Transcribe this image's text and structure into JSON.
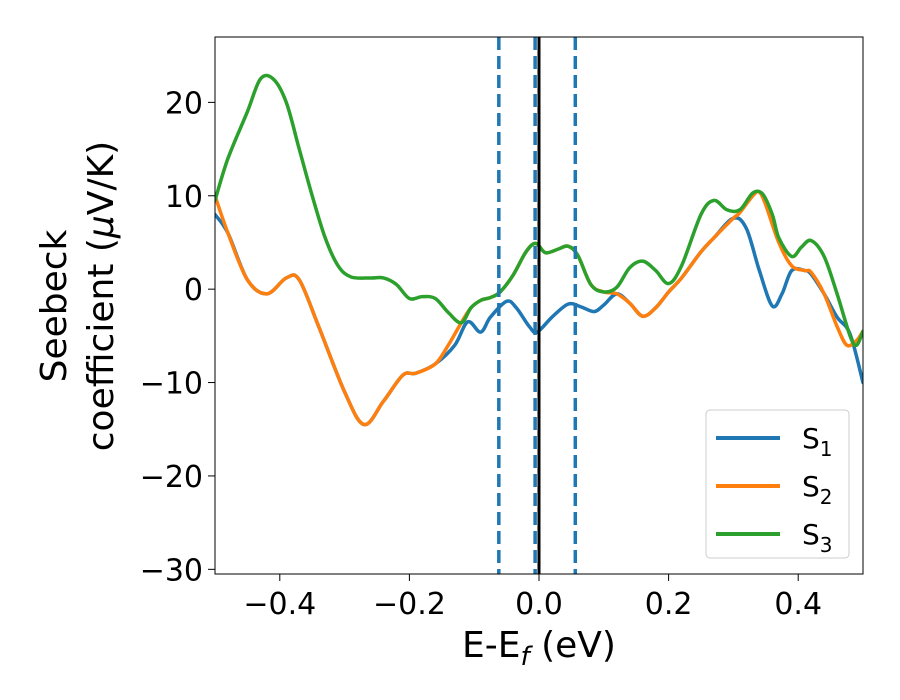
{
  "chart_data": {
    "type": "line",
    "title": "",
    "xlabel": {
      "main": "E-E",
      "sub": "f",
      "tail": " (eV)"
    },
    "ylabel": {
      "line1": "Seebeck",
      "line2_a": "coefficient  (",
      "line2_mu": "μ",
      "line2_b": "V/K)"
    },
    "xlim": [
      -0.5,
      0.5
    ],
    "ylim": [
      -30.5,
      27
    ],
    "xticks": [
      -0.4,
      -0.2,
      0.0,
      0.2,
      0.4
    ],
    "xtick_labels": [
      "−0.4",
      "−0.2",
      "0.0",
      "0.2",
      "0.4"
    ],
    "yticks": [
      -30,
      -20,
      -10,
      0,
      10,
      20
    ],
    "ytick_labels": [
      "−30",
      "−20",
      "−10",
      "0",
      "10",
      "20"
    ],
    "legend_position": "bottom-right",
    "vlines": [
      {
        "x": -0.062,
        "style": "dashed",
        "color": "#1f77b4"
      },
      {
        "x": -0.006,
        "style": "dashed",
        "color": "#1f77b4"
      },
      {
        "x": 0.0,
        "style": "solid",
        "color": "#000000"
      },
      {
        "x": 0.056,
        "style": "dashed",
        "color": "#1f77b4"
      }
    ],
    "series": [
      {
        "name": "S",
        "sub": "1",
        "color": "#1f77b4",
        "points": [
          [
            -0.5,
            8
          ],
          [
            -0.48,
            6
          ],
          [
            -0.45,
            1
          ],
          [
            -0.42,
            -0.5
          ],
          [
            -0.39,
            1.2
          ],
          [
            -0.37,
            1
          ],
          [
            -0.34,
            -4
          ],
          [
            -0.3,
            -11
          ],
          [
            -0.27,
            -14.5
          ],
          [
            -0.24,
            -12
          ],
          [
            -0.21,
            -9.2
          ],
          [
            -0.19,
            -9
          ],
          [
            -0.16,
            -8
          ],
          [
            -0.13,
            -6
          ],
          [
            -0.11,
            -3.5
          ],
          [
            -0.09,
            -4.6
          ],
          [
            -0.075,
            -3
          ],
          [
            -0.05,
            -1.3
          ],
          [
            -0.035,
            -2
          ],
          [
            -0.015,
            -4
          ],
          [
            -0.003,
            -4.6
          ],
          [
            0.02,
            -3
          ],
          [
            0.045,
            -1.6
          ],
          [
            0.065,
            -1.9
          ],
          [
            0.085,
            -2.4
          ],
          [
            0.1,
            -1.7
          ],
          [
            0.12,
            -0.5
          ],
          [
            0.14,
            -1.5
          ],
          [
            0.16,
            -2.9
          ],
          [
            0.18,
            -2
          ],
          [
            0.2,
            -0.3
          ],
          [
            0.22,
            1.2
          ],
          [
            0.25,
            4
          ],
          [
            0.27,
            5.5
          ],
          [
            0.3,
            7.6
          ],
          [
            0.32,
            6.5
          ],
          [
            0.34,
            2
          ],
          [
            0.36,
            -1.8
          ],
          [
            0.375,
            -0.5
          ],
          [
            0.39,
            2
          ],
          [
            0.41,
            2
          ],
          [
            0.42,
            1.6
          ],
          [
            0.44,
            -0.5
          ],
          [
            0.46,
            -3
          ],
          [
            0.48,
            -4.8
          ],
          [
            0.5,
            -10
          ]
        ]
      },
      {
        "name": "S",
        "sub": "2",
        "color": "#ff7f0e",
        "points": [
          [
            -0.5,
            10
          ],
          [
            -0.48,
            6
          ],
          [
            -0.45,
            1
          ],
          [
            -0.42,
            -0.5
          ],
          [
            -0.39,
            1.2
          ],
          [
            -0.37,
            1
          ],
          [
            -0.34,
            -4
          ],
          [
            -0.3,
            -11
          ],
          [
            -0.27,
            -14.5
          ],
          [
            -0.24,
            -12
          ],
          [
            -0.21,
            -9.2
          ],
          [
            -0.19,
            -9
          ],
          [
            -0.16,
            -8
          ],
          [
            -0.14,
            -6
          ],
          [
            -0.12,
            -3.6
          ],
          [
            -0.105,
            -2
          ],
          [
            -0.09,
            -1.2
          ],
          [
            -0.075,
            -0.9
          ],
          [
            -0.06,
            -0.3
          ],
          [
            -0.04,
            1.5
          ],
          [
            -0.02,
            4
          ],
          [
            -0.005,
            4.9
          ],
          [
            0.01,
            3.9
          ],
          [
            0.03,
            4.3
          ],
          [
            0.045,
            4.6
          ],
          [
            0.06,
            3.6
          ],
          [
            0.08,
            0.5
          ],
          [
            0.1,
            -0.3
          ],
          [
            0.12,
            -0.5
          ],
          [
            0.14,
            -1.5
          ],
          [
            0.16,
            -2.9
          ],
          [
            0.18,
            -2
          ],
          [
            0.2,
            -0.3
          ],
          [
            0.22,
            1.2
          ],
          [
            0.25,
            4
          ],
          [
            0.27,
            5.5
          ],
          [
            0.3,
            7.6
          ],
          [
            0.31,
            8.2
          ],
          [
            0.33,
            10
          ],
          [
            0.34,
            10.4
          ],
          [
            0.35,
            9
          ],
          [
            0.37,
            5
          ],
          [
            0.39,
            2.5
          ],
          [
            0.41,
            2
          ],
          [
            0.42,
            1.8
          ],
          [
            0.44,
            -0.5
          ],
          [
            0.46,
            -4
          ],
          [
            0.475,
            -6
          ],
          [
            0.49,
            -5.5
          ],
          [
            0.5,
            -4.5
          ]
        ]
      },
      {
        "name": "S",
        "sub": "3",
        "color": "#2ca02c",
        "points": [
          [
            -0.5,
            9.5
          ],
          [
            -0.48,
            14
          ],
          [
            -0.45,
            19
          ],
          [
            -0.43,
            22.5
          ],
          [
            -0.41,
            22.5
          ],
          [
            -0.39,
            20
          ],
          [
            -0.37,
            15
          ],
          [
            -0.35,
            10
          ],
          [
            -0.33,
            5.5
          ],
          [
            -0.31,
            2.5
          ],
          [
            -0.29,
            1.3
          ],
          [
            -0.26,
            1.2
          ],
          [
            -0.24,
            1.2
          ],
          [
            -0.22,
            0.5
          ],
          [
            -0.2,
            -1
          ],
          [
            -0.18,
            -0.8
          ],
          [
            -0.16,
            -1
          ],
          [
            -0.14,
            -2.5
          ],
          [
            -0.12,
            -3.6
          ],
          [
            -0.105,
            -2
          ],
          [
            -0.09,
            -1.2
          ],
          [
            -0.075,
            -0.9
          ],
          [
            -0.06,
            -0.3
          ],
          [
            -0.04,
            1.5
          ],
          [
            -0.02,
            4
          ],
          [
            -0.005,
            4.9
          ],
          [
            0.01,
            3.9
          ],
          [
            0.03,
            4.3
          ],
          [
            0.045,
            4.6
          ],
          [
            0.06,
            3.6
          ],
          [
            0.08,
            0.5
          ],
          [
            0.1,
            -0.3
          ],
          [
            0.12,
            0.2
          ],
          [
            0.14,
            2.3
          ],
          [
            0.16,
            3
          ],
          [
            0.18,
            2
          ],
          [
            0.2,
            0.6
          ],
          [
            0.22,
            2.5
          ],
          [
            0.25,
            8
          ],
          [
            0.27,
            9.5
          ],
          [
            0.29,
            8.5
          ],
          [
            0.31,
            8.5
          ],
          [
            0.33,
            10.3
          ],
          [
            0.345,
            10.2
          ],
          [
            0.36,
            8
          ],
          [
            0.37,
            5.5
          ],
          [
            0.39,
            3.5
          ],
          [
            0.405,
            4.5
          ],
          [
            0.42,
            5.2
          ],
          [
            0.44,
            3.5
          ],
          [
            0.46,
            -0.5
          ],
          [
            0.48,
            -5
          ],
          [
            0.49,
            -6
          ],
          [
            0.5,
            -4.5
          ]
        ]
      }
    ]
  }
}
